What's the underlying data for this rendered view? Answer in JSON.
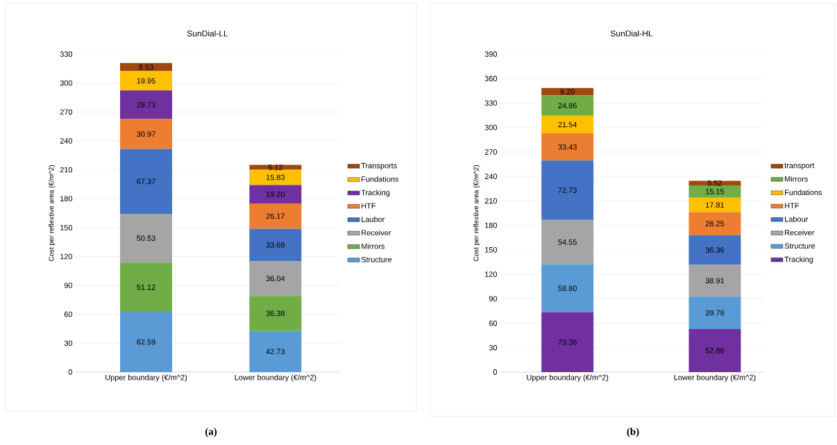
{
  "chart_data": [
    {
      "type": "bar",
      "stacked": true,
      "title": "SunDial-LL",
      "ylabel": "Cost per reflextive area (€/m^2)",
      "categories": [
        "Upper boundary (€/m^2)",
        "Lower boundary (€/m^2)"
      ],
      "ylim": [
        0,
        330
      ],
      "yticks": [
        0,
        30,
        60,
        90,
        120,
        150,
        180,
        210,
        240,
        270,
        300,
        330
      ],
      "grid": "y",
      "legend": "right",
      "annotations": [
        "(a)"
      ],
      "series": [
        {
          "name": "Structure",
          "color": "#5b9bd5",
          "values": [
            62.59,
            42.73
          ],
          "value_labels": [
            "62.59",
            "42.73"
          ]
        },
        {
          "name": "Mirrors",
          "color": "#70ad47",
          "values": [
            51.12,
            36.38
          ],
          "value_labels": [
            "51.12",
            "36.38"
          ]
        },
        {
          "name": "Receiver",
          "color": "#a5a5a5",
          "values": [
            50.53,
            36.04
          ],
          "value_labels": [
            "50.53",
            "36.04"
          ]
        },
        {
          "name": "Laubor",
          "color": "#4472c4",
          "values": [
            67.37,
            33.68
          ],
          "value_labels": [
            "67.37",
            "33.68"
          ]
        },
        {
          "name": "HTF",
          "color": "#ed7d31",
          "values": [
            30.97,
            26.17
          ],
          "value_labels": [
            "30.97",
            "26.17"
          ]
        },
        {
          "name": "Tracking",
          "color": "#7030a0",
          "values": [
            29.73,
            19.2
          ],
          "value_labels": [
            "29.73",
            "19.20"
          ]
        },
        {
          "name": "Fundations",
          "color": "#ffc000",
          "values": [
            19.95,
            15.83
          ],
          "value_labels": [
            "19.95",
            "15.83"
          ]
        },
        {
          "name": "Transports",
          "color": "#9e480e",
          "values": [
            8.53,
            5.12
          ],
          "value_labels": [
            "8.53",
            "5.12"
          ]
        }
      ]
    },
    {
      "type": "bar",
      "stacked": true,
      "title": "SunDial-HL",
      "ylabel": "Cost per reflextive area (€/m^2)",
      "categories": [
        "Upper boundary (€/m^2)",
        "Lower boundary (€/m^2)"
      ],
      "ylim": [
        0,
        390
      ],
      "yticks": [
        0,
        30,
        60,
        90,
        120,
        150,
        180,
        210,
        240,
        270,
        300,
        330,
        360,
        390
      ],
      "grid": "y",
      "legend": "right",
      "annotations": [
        "(b)"
      ],
      "series": [
        {
          "name": "Tracking",
          "color": "#7030a0",
          "values": [
            73.36,
            52.86
          ],
          "value_labels": [
            "73.36",
            "52.86"
          ]
        },
        {
          "name": "Structure",
          "color": "#5b9bd5",
          "values": [
            58.8,
            39.78
          ],
          "value_labels": [
            "58.80",
            "39.78"
          ]
        },
        {
          "name": "Receiver",
          "color": "#a5a5a5",
          "values": [
            54.55,
            38.91
          ],
          "value_labels": [
            "54.55",
            "38.91"
          ]
        },
        {
          "name": "Labour",
          "color": "#4472c4",
          "values": [
            72.73,
            36.36
          ],
          "value_labels": [
            "72.73",
            "36.36"
          ]
        },
        {
          "name": "HTF",
          "color": "#ed7d31",
          "values": [
            33.43,
            28.25
          ],
          "value_labels": [
            "33.43",
            "28.25"
          ]
        },
        {
          "name": "Fundations",
          "color": "#ffc000",
          "values": [
            21.54,
            17.81
          ],
          "value_labels": [
            "21.54",
            "17.81"
          ]
        },
        {
          "name": "Mirrors",
          "color": "#70ad47",
          "values": [
            24.86,
            15.15
          ],
          "value_labels": [
            "24.86",
            "15.15"
          ]
        },
        {
          "name": "transport",
          "color": "#9e480e",
          "values": [
            9.2,
            5.52
          ],
          "value_labels": [
            "9.20",
            "5.52"
          ]
        }
      ]
    }
  ]
}
